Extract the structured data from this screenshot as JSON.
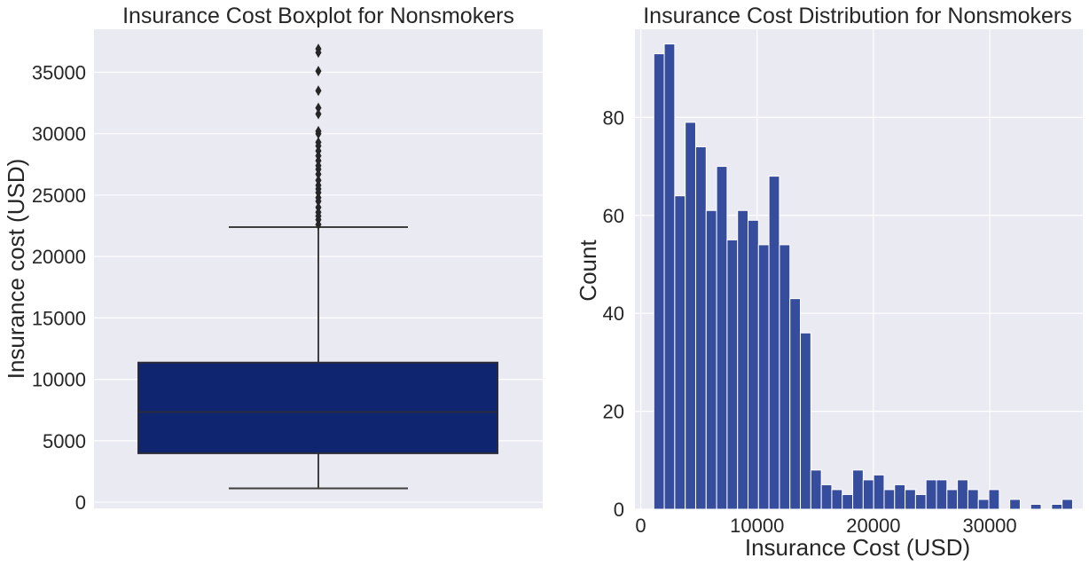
{
  "colors": {
    "panel_background": "#eaeaf2",
    "grid": "#ffffff",
    "box_fill": "#0f2570",
    "box_edge": "#2b2b3a",
    "whisker": "#3f3f3f",
    "flier": "#262626",
    "bar_fill": "#364c9d",
    "bar_edge": "#ffffff"
  },
  "chart_data": [
    {
      "type": "box",
      "title": "Insurance Cost Boxplot for Nonsmokers",
      "xlabel": "",
      "ylabel": "Insurance cost (USD)",
      "ylim": [
        -500,
        38500
      ],
      "yticks": [
        0,
        5000,
        10000,
        15000,
        20000,
        25000,
        30000,
        35000
      ],
      "ytick_labels": [
        "0",
        "5000",
        "10000",
        "15000",
        "20000",
        "25000",
        "30000",
        "35000"
      ],
      "grid": true,
      "box": {
        "whisker_low": 1121,
        "q1": 3986,
        "median": 7345,
        "q3": 11363,
        "whisker_high": 22395
      },
      "outliers": [
        22600,
        23000,
        23300,
        23600,
        24000,
        24500,
        24800,
        25200,
        25500,
        25800,
        26200,
        26700,
        27100,
        27400,
        27800,
        28200,
        28600,
        29000,
        29300,
        30000,
        30200,
        31600,
        32100,
        33500,
        35100,
        36600,
        36900
      ]
    },
    {
      "type": "bar",
      "subtype": "histogram",
      "title": "Insurance Cost Distribution for Nonsmokers",
      "xlabel": "Insurance Cost (USD)",
      "ylabel": "Count",
      "xlim": [
        -500,
        38000
      ],
      "ylim": [
        0,
        98
      ],
      "xticks": [
        0,
        10000,
        20000,
        30000
      ],
      "xtick_labels": [
        "0",
        "10000",
        "20000",
        "30000"
      ],
      "yticks": [
        0,
        20,
        40,
        60,
        80
      ],
      "ytick_labels": [
        "0",
        "20",
        "40",
        "60",
        "80"
      ],
      "grid": true,
      "bin_start": 1121,
      "bin_width": 900,
      "values": [
        93,
        95,
        64,
        79,
        74,
        61,
        70,
        55,
        61,
        59,
        54,
        68,
        54,
        43,
        36,
        8,
        5,
        4,
        3,
        8,
        6,
        7,
        4,
        5,
        4,
        3,
        6,
        6,
        4,
        6,
        4,
        2,
        4,
        0,
        2,
        0,
        1,
        0,
        1,
        2
      ]
    }
  ]
}
